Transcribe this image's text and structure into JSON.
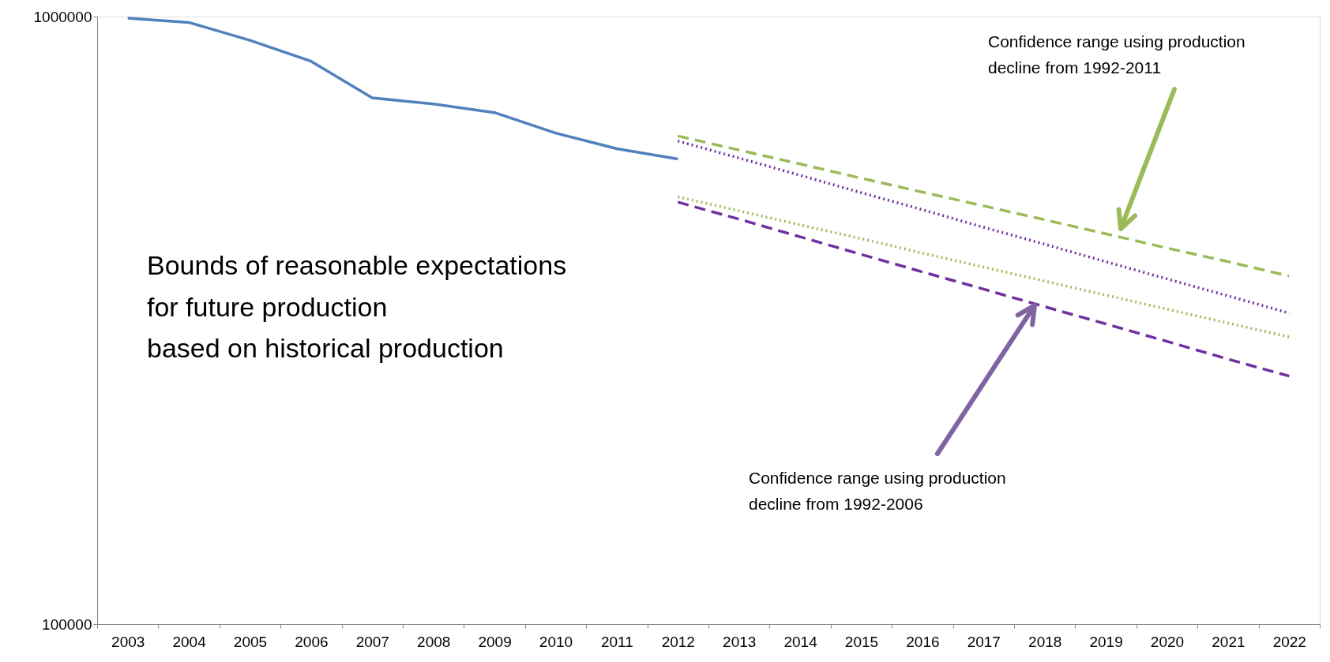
{
  "chart_data": {
    "type": "line",
    "categories": [
      "2003",
      "2004",
      "2005",
      "2006",
      "2007",
      "2008",
      "2009",
      "2010",
      "2011",
      "2012",
      "2013",
      "2014",
      "2015",
      "2016",
      "2017",
      "2018",
      "2019",
      "2020",
      "2021",
      "2022"
    ],
    "series": [
      {
        "color": "#4f81bd",
        "line_style": "solid",
        "values": [
          994000,
          978000,
          914000,
          844000,
          735000,
          718000,
          695000,
          643000,
          606000,
          583000,
          null,
          null,
          null,
          null,
          null,
          null,
          null,
          null,
          null,
          null
        ]
      },
      {
        "color": "#9bbb59",
        "line_style": "dashed",
        "values": [
          null,
          null,
          null,
          null,
          null,
          null,
          null,
          null,
          null,
          636000,
          603000,
          572000,
          542000,
          514000,
          488000,
          463000,
          439000,
          416000,
          395000,
          374000
        ]
      },
      {
        "color": "#7030a0",
        "line_style": "dotted",
        "values": [
          null,
          null,
          null,
          null,
          null,
          null,
          null,
          null,
          null,
          624000,
          585000,
          548000,
          513000,
          481000,
          450000,
          422000,
          395000,
          370000,
          347000,
          325000
        ]
      },
      {
        "color": "#9bbb59",
        "line_style": "dotted",
        "values": [
          null,
          null,
          null,
          null,
          null,
          null,
          null,
          null,
          null,
          505000,
          479000,
          454000,
          431000,
          408000,
          387000,
          367000,
          348000,
          330000,
          313000,
          297000
        ]
      },
      {
        "color": "#7030a0",
        "line_style": "dashed",
        "values": [
          null,
          null,
          null,
          null,
          null,
          null,
          null,
          null,
          null,
          495000,
          464000,
          434000,
          406000,
          380000,
          356000,
          333000,
          312000,
          292000,
          273000,
          256000
        ]
      }
    ],
    "log": true,
    "ylim": [
      100000,
      1000000
    ],
    "yticks": [
      100000,
      1000000
    ],
    "grid": false,
    "annotations": [
      "Bounds of reasonable expectations\n for future production\nbased on historical production",
      "Confidence range using production\ndecline from 1992-2011",
      "Confidence range using production\ndecline from 1992-2006"
    ]
  }
}
